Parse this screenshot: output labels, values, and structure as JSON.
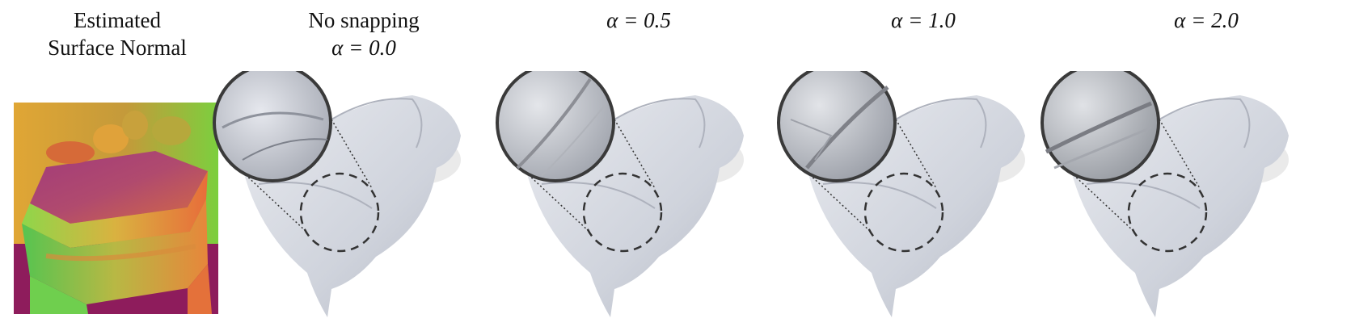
{
  "figure": {
    "columns": [
      {
        "id": "normal",
        "line1": "Estimated",
        "line2": "Surface Normal"
      },
      {
        "id": "a0",
        "line1": "No snapping",
        "line2": "α = 0.0"
      },
      {
        "id": "a05",
        "line1": "",
        "line2": "α = 0.5"
      },
      {
        "id": "a1",
        "line1": "",
        "line2": "α = 1.0"
      },
      {
        "id": "a2",
        "line1": "",
        "line2": "α = 2.0"
      }
    ]
  }
}
